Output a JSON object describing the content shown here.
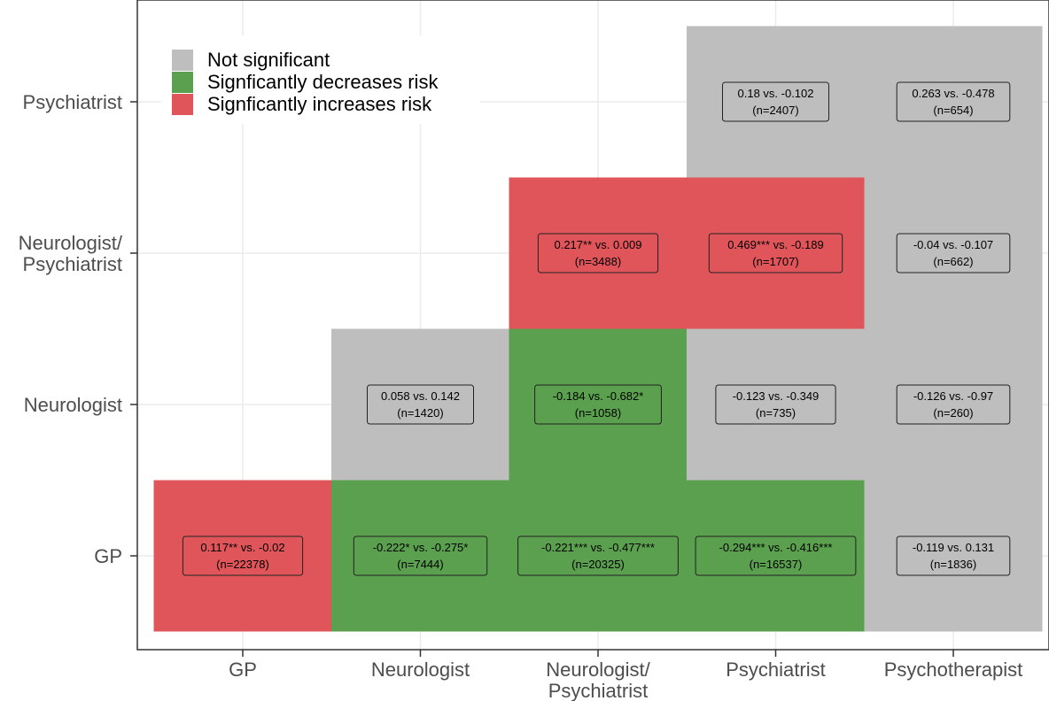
{
  "chart_data": {
    "type": "heatmap",
    "title": "",
    "xlabel": "",
    "ylabel": "",
    "x_categories": [
      "GP",
      "Neurologist",
      "Neurologist/\nPsychiatrist",
      "Psychiatrist",
      "Psychotherapist"
    ],
    "y_categories": [
      "GP",
      "Neurologist",
      "Neurologist/\nPsychiatrist",
      "Psychiatrist"
    ],
    "grid": true,
    "legend_placement": "top-left",
    "legend": [
      {
        "key": "ns",
        "label": "Not significant",
        "color": "#bebebe"
      },
      {
        "key": "dec",
        "label": "Signficantly decreases risk",
        "color": "#5aa04e"
      },
      {
        "key": "inc",
        "label": "Signficantly increases risk",
        "color": "#e0555a"
      }
    ],
    "cells": [
      {
        "x": 0,
        "y": 0,
        "status": "inc",
        "line1": "0.117** vs. -0.02",
        "line2": "(n=22378)"
      },
      {
        "x": 1,
        "y": 0,
        "status": "dec",
        "line1": "-0.222* vs. -0.275*",
        "line2": "(n=7444)"
      },
      {
        "x": 2,
        "y": 0,
        "status": "dec",
        "line1": "-0.221*** vs. -0.477***",
        "line2": "(n=20325)"
      },
      {
        "x": 3,
        "y": 0,
        "status": "dec",
        "line1": "-0.294*** vs. -0.416***",
        "line2": "(n=16537)"
      },
      {
        "x": 4,
        "y": 0,
        "status": "ns",
        "line1": "-0.119 vs. 0.131",
        "line2": "(n=1836)"
      },
      {
        "x": 1,
        "y": 1,
        "status": "ns",
        "line1": "0.058 vs. 0.142",
        "line2": "(n=1420)"
      },
      {
        "x": 2,
        "y": 1,
        "status": "dec",
        "line1": "-0.184 vs. -0.682*",
        "line2": "(n=1058)"
      },
      {
        "x": 3,
        "y": 1,
        "status": "ns",
        "line1": "-0.123 vs. -0.349",
        "line2": "(n=735)"
      },
      {
        "x": 4,
        "y": 1,
        "status": "ns",
        "line1": "-0.126 vs. -0.97",
        "line2": "(n=260)"
      },
      {
        "x": 2,
        "y": 2,
        "status": "inc",
        "line1": "0.217** vs. 0.009",
        "line2": "(n=3488)"
      },
      {
        "x": 3,
        "y": 2,
        "status": "inc",
        "line1": "0.469*** vs. -0.189",
        "line2": "(n=1707)"
      },
      {
        "x": 4,
        "y": 2,
        "status": "ns",
        "line1": "-0.04 vs. -0.107",
        "line2": "(n=662)"
      },
      {
        "x": 3,
        "y": 3,
        "status": "ns",
        "line1": "0.18 vs. -0.102",
        "line2": "(n=2407)"
      },
      {
        "x": 4,
        "y": 3,
        "status": "ns",
        "line1": "0.263 vs. -0.478",
        "line2": "(n=654)"
      }
    ]
  }
}
